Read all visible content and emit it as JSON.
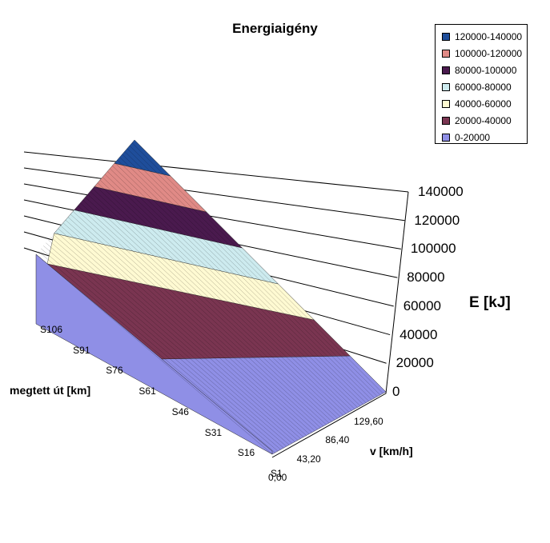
{
  "chart_data": {
    "type": "surface",
    "title": "Energiaigény",
    "xlabel": "v [km/h]",
    "ylabel": "megtett út [km]",
    "zlabel": "E [kJ]",
    "x_ticks": [
      "0,00",
      "43,20",
      "86,40",
      "129,60"
    ],
    "y_ticks": [
      "S1",
      "S16",
      "S31",
      "S46",
      "S61",
      "S76",
      "S91",
      "S106"
    ],
    "z_ticks": [
      "0",
      "20000",
      "40000",
      "60000",
      "80000",
      "100000",
      "120000",
      "140000"
    ],
    "zlim": [
      0,
      140000
    ],
    "legend_position": "top-right",
    "bands": [
      {
        "range": "120000-140000",
        "min": 120000,
        "max": 140000,
        "color": "#1F4E9B"
      },
      {
        "range": "100000-120000",
        "min": 100000,
        "max": 120000,
        "color": "#E08A86"
      },
      {
        "range": "80000-100000",
        "min": 80000,
        "max": 100000,
        "color": "#4A1A4E"
      },
      {
        "range": "60000-80000",
        "min": 60000,
        "max": 80000,
        "color": "#CDEBEF"
      },
      {
        "range": "40000-60000",
        "min": 40000,
        "max": 60000,
        "color": "#FFFAD2"
      },
      {
        "range": "20000-40000",
        "min": 20000,
        "max": 40000,
        "color": "#7A3551"
      },
      {
        "range": "0-20000",
        "min": 0,
        "max": 20000,
        "color": "#8F8FE6"
      }
    ]
  }
}
